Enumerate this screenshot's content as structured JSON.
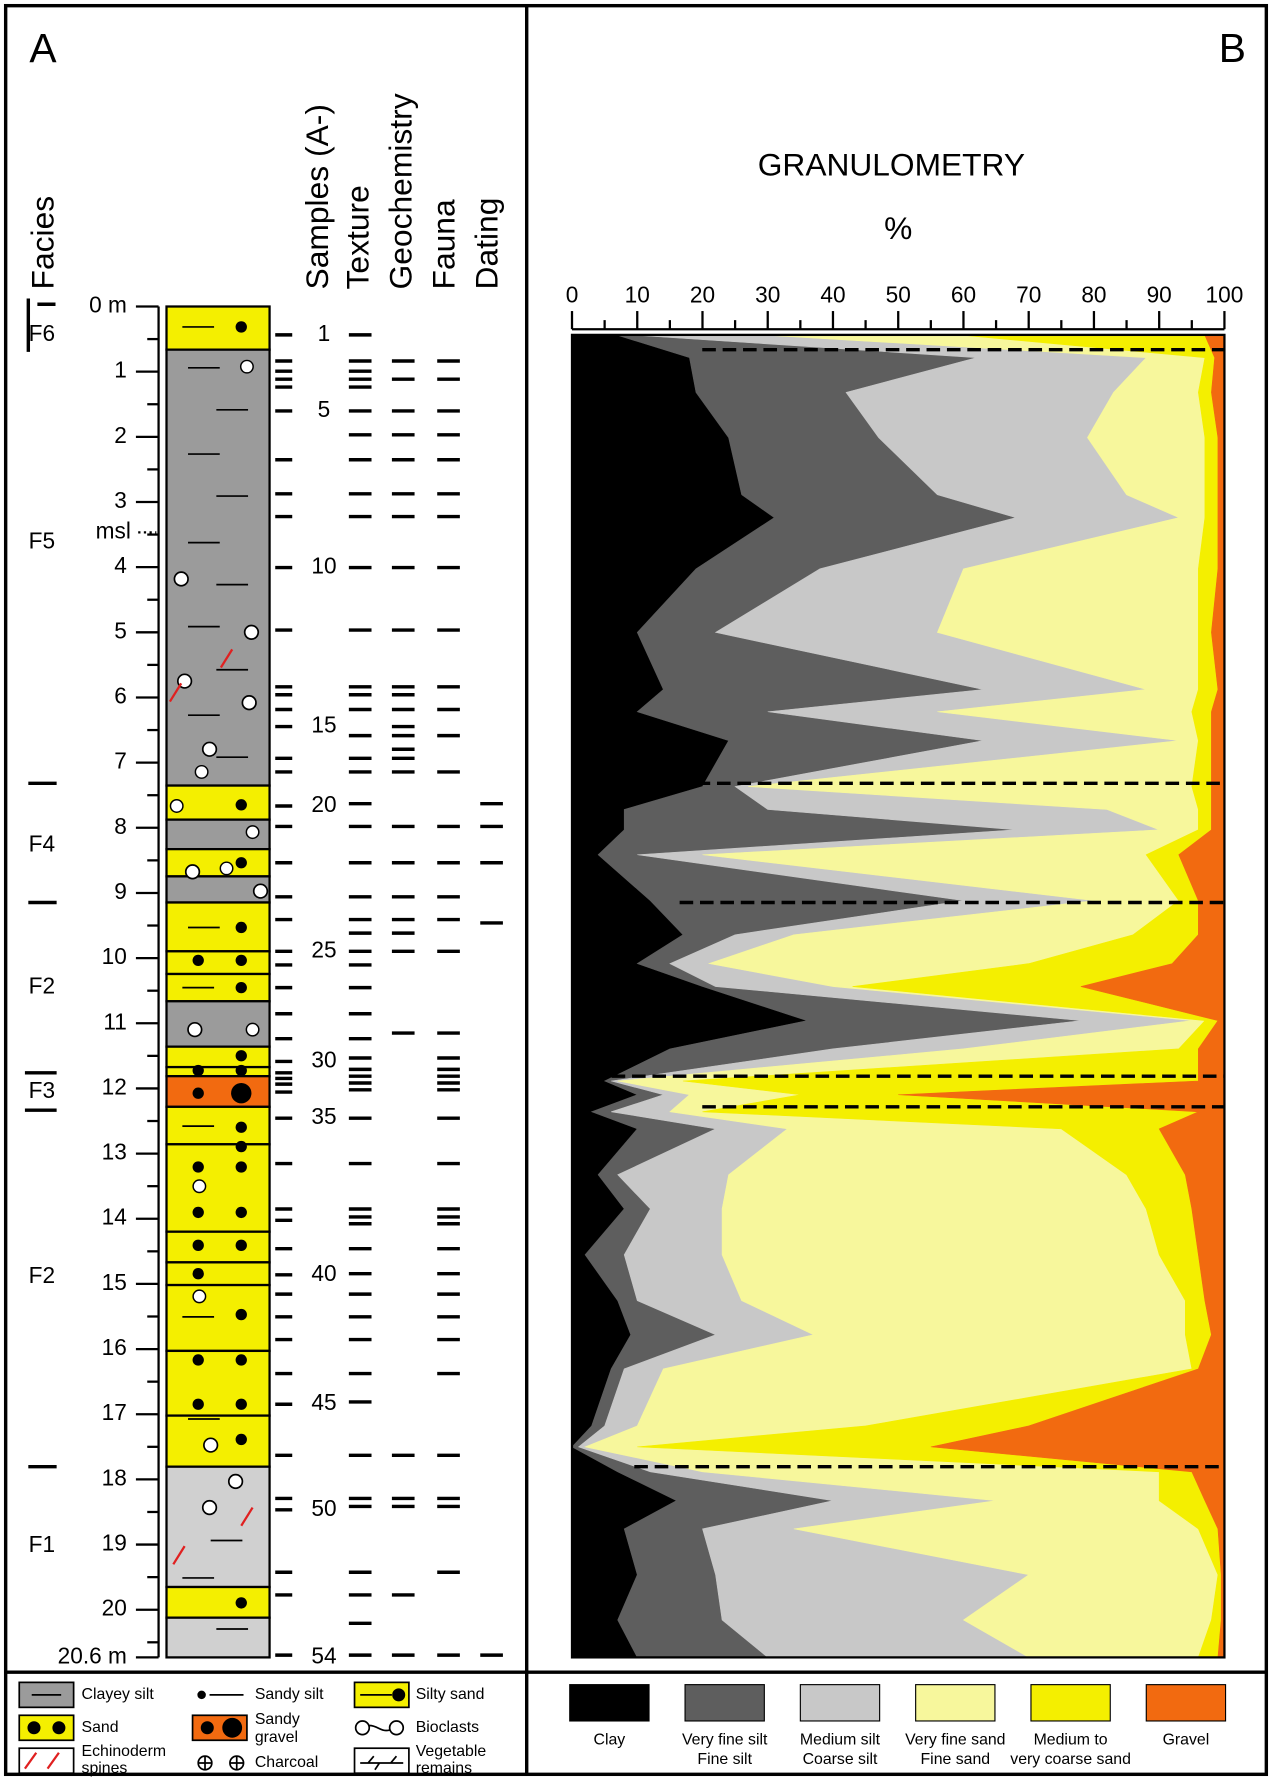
{
  "panel_a": {
    "label": "A",
    "columns": [
      "Facies",
      "Samples (A-)",
      "Texture",
      "Geochemistry",
      "Fauna",
      "Dating"
    ],
    "depth_labels": [
      "0 m",
      "1",
      "2",
      "3",
      "4",
      "5",
      "6",
      "7",
      "8",
      "9",
      "10",
      "11",
      "12",
      "13",
      "14",
      "15",
      "16",
      "17",
      "18",
      "19",
      "20",
      "20.6 m"
    ],
    "msl": "msl",
    "facies": [
      "F6",
      "F5",
      "F4",
      "F2",
      "F3",
      "F2",
      "F1"
    ],
    "samples": [
      "1",
      "5",
      "10",
      "15",
      "20",
      "25",
      "30",
      "35",
      "40",
      "45",
      "50",
      "54"
    ],
    "legend": [
      [
        "Clayey silt"
      ],
      [
        "Sandy silt"
      ],
      [
        "Silty sand"
      ],
      [
        "Sand"
      ],
      [
        "Sandy",
        "gravel"
      ],
      [
        "Bioclasts"
      ],
      [
        "Echinoderm",
        "spines"
      ],
      [
        "Charcoal"
      ],
      [
        "Vegetable",
        "remains"
      ]
    ]
  },
  "chart_data": {
    "type": "stacked_area_horizontal",
    "panel_label": "B",
    "title": "GRANULOMETRY",
    "xlabel": "%",
    "xlim": [
      0,
      100
    ],
    "xticks": [
      0,
      10,
      20,
      30,
      40,
      50,
      60,
      70,
      80,
      90,
      100
    ],
    "ylim": [
      0,
      20.6
    ],
    "depth": [
      0.44,
      0.78,
      1.31,
      2.0,
      2.87,
      3.22,
      4.0,
      4.97,
      5.84,
      6.18,
      6.62,
      7.32,
      7.67,
      7.98,
      8.36,
      9.06,
      9.58,
      10.02,
      10.37,
      10.89,
      11.32,
      11.81,
      12.02,
      12.28,
      12.54,
      13.24,
      13.76,
      14.46,
      15.16,
      15.68,
      16.2,
      17.07,
      17.39,
      17.77,
      18.21,
      18.64,
      19.34,
      20.03,
      20.6
    ],
    "series": [
      {
        "name": [
          "Clay"
        ],
        "color": "#000000",
        "values": [
          7,
          18,
          19,
          24,
          26,
          31,
          19,
          10,
          14,
          10,
          24,
          20,
          8,
          8,
          4,
          12,
          17,
          10,
          20,
          36,
          15,
          5,
          10,
          3,
          10,
          4,
          8,
          2,
          7,
          9,
          6,
          3,
          0,
          7,
          16,
          8,
          10,
          7,
          10
        ]
      },
      {
        "name": [
          "Very fine silt",
          "Fine silt"
        ],
        "color": "#5e5e5e",
        "values": [
          3,
          44,
          23,
          23,
          30,
          37,
          19,
          12,
          49,
          20,
          39,
          5,
          22,
          60,
          6,
          48,
          8,
          5,
          2,
          42,
          25,
          1,
          4,
          3,
          12,
          3,
          4,
          6,
          3,
          13,
          2,
          2,
          1,
          5,
          24,
          12,
          12,
          16,
          20
        ]
      },
      {
        "name": [
          "Medium silt",
          "Coarse silt"
        ],
        "color": "#c8c8c8",
        "values": [
          20,
          26,
          41,
          32,
          29,
          25,
          22,
          34,
          25,
          26,
          30,
          2,
          52,
          22,
          10,
          20,
          9,
          6,
          18,
          17,
          20,
          1,
          4,
          9,
          11,
          17,
          11,
          15,
          16,
          15,
          6,
          5,
          1,
          8,
          25,
          14,
          48,
          37,
          40
        ]
      },
      {
        "name": [
          "Very fine sand",
          "Fine sand"
        ],
        "color": "#f7f79c",
        "values": [
          30,
          9,
          13,
          18,
          12,
          4,
          36,
          40,
          8,
          39,
          3,
          68,
          14,
          6,
          68,
          13,
          52,
          49,
          3,
          2,
          33,
          10,
          17,
          5,
          42,
          61,
          65,
          67,
          68,
          57,
          81,
          35,
          8,
          70,
          25,
          62,
          29,
          38,
          26
        ]
      },
      {
        "name": [
          "Medium to",
          "very coarse sand"
        ],
        "color": "#f4ef00",
        "values": [
          37,
          1.5,
          2,
          2,
          2,
          2,
          3,
          2,
          3,
          3,
          2,
          3,
          2,
          2,
          5,
          3,
          10,
          22,
          35,
          2,
          3,
          79,
          15,
          76,
          15,
          9,
          7,
          6,
          3,
          4,
          1,
          25,
          45,
          5,
          7,
          3,
          0.5,
          1.5,
          3
        ]
      },
      {
        "name": [
          "Gravel"
        ],
        "color": "#f26a10",
        "values": [
          3,
          1.5,
          2,
          1,
          1,
          1,
          1,
          2,
          1,
          2,
          2,
          2,
          2,
          2,
          7,
          4,
          4,
          8,
          22,
          1,
          4,
          4,
          50,
          4,
          10,
          6,
          5,
          4,
          3,
          2,
          4,
          30,
          45,
          5,
          3,
          1,
          0.5,
          0.5,
          1
        ]
      }
    ]
  }
}
